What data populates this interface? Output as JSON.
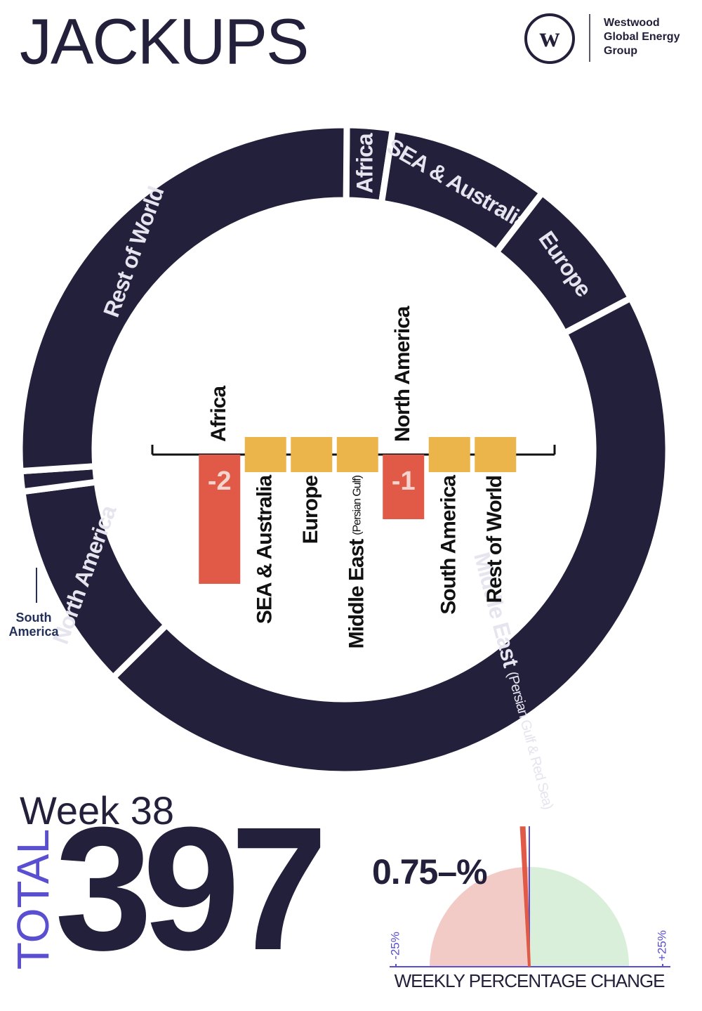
{
  "header": {
    "title": "JACKUPS",
    "logo_lines": [
      "Westwood",
      "Global Energy",
      "Group"
    ]
  },
  "chart_data": [
    {
      "type": "donut",
      "color": "#22203a",
      "categories": [
        "Africa",
        "SEA & Australia",
        "Europe",
        "Middle East",
        "North America",
        "South America",
        "Rest of World"
      ],
      "notes": [
        null,
        null,
        null,
        "(Persian Gulf & Red Sea)",
        null,
        null,
        null
      ],
      "values": [
        9,
        32,
        27,
        180,
        41,
        4,
        104
      ]
    },
    {
      "type": "bar",
      "negative_color": "#e05a47",
      "zero_color": "#ecb54c",
      "categories": [
        "Africa",
        "SEA & Australia",
        "Europe",
        "Middle East",
        "North America",
        "South America",
        "Rest of World"
      ],
      "notes": [
        null,
        null,
        null,
        "(Persian Gulf)",
        null,
        null,
        null
      ],
      "values": [
        -2,
        0,
        0,
        0,
        -1,
        0,
        0
      ]
    },
    {
      "type": "gauge",
      "title": "WEEKLY PERCENTAGE CHANGE",
      "value": -0.75,
      "value_label": "0.75–%",
      "xlim": [
        -25,
        25
      ],
      "xticks": [
        {
          "value": -25,
          "label": "-25%"
        },
        {
          "value": 25,
          "label": "+25%"
        }
      ],
      "negative_color": "#f2cbc6",
      "positive_color": "#d9efd9",
      "needle_color": "#e05a47"
    }
  ],
  "summary": {
    "week": "Week 38",
    "total_label": "TOTAL",
    "total": 397
  }
}
